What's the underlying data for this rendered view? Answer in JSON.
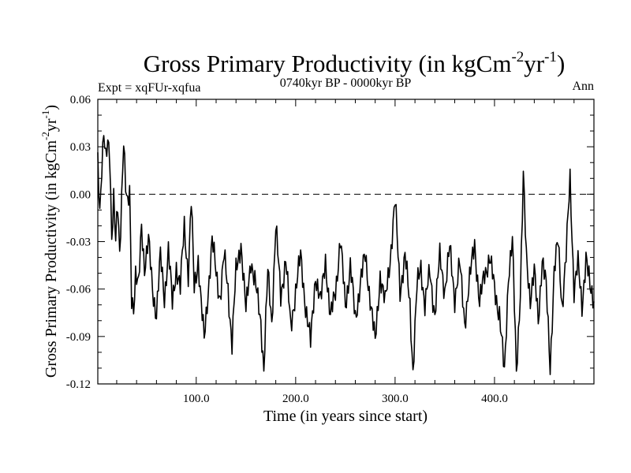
{
  "chart_data": {
    "type": "line",
    "title": "Gross Primary Productivity (in kgCm",
    "title_sup1": "-2",
    "title_mid": "yr",
    "title_sup2": "-1",
    "title_end": ")",
    "subtitle_left": "Expt = xqFUr-xqfua",
    "subtitle_center": "0740kyr BP - 0000kyr BP",
    "subtitle_right": "Ann",
    "xlabel": "Time (in years since start)",
    "ylabel_main": "Gross Primary Productivity (in kgCm",
    "ylabel_sup1": "-2",
    "ylabel_mid": "yr",
    "ylabel_sup2": "-1",
    "ylabel_end": ")",
    "xlim": [
      1,
      500
    ],
    "ylim": [
      -0.12,
      0.06
    ],
    "x_ticks": [
      100,
      200,
      300,
      400
    ],
    "x_tick_labels": [
      "100.0",
      "200.0",
      "300.0",
      "400.0"
    ],
    "y_ticks": [
      -0.12,
      -0.09,
      -0.06,
      -0.03,
      0.0,
      0.03,
      0.06
    ],
    "y_tick_labels": [
      "-0.12",
      "-0.09",
      "-0.06",
      "-0.03",
      "0.00",
      "0.03",
      "0.06"
    ],
    "reference_line": 0.0,
    "grid": false,
    "anchors": [
      [
        1,
        0.02
      ],
      [
        3,
        -0.01
      ],
      [
        5,
        0.02
      ],
      [
        7,
        0.04
      ],
      [
        9,
        0.02
      ],
      [
        11,
        0.03
      ],
      [
        13,
        0.025
      ],
      [
        15,
        -0.025
      ],
      [
        17,
        0.0
      ],
      [
        19,
        -0.03
      ],
      [
        21,
        -0.01
      ],
      [
        23,
        -0.04
      ],
      [
        25,
        0.0
      ],
      [
        27,
        0.038
      ],
      [
        29,
        0.005
      ],
      [
        31,
        -0.01
      ],
      [
        33,
        0.0
      ],
      [
        35,
        -0.065
      ],
      [
        37,
        -0.07
      ],
      [
        39,
        -0.05
      ],
      [
        42,
        -0.06
      ],
      [
        45,
        -0.02
      ],
      [
        48,
        -0.045
      ],
      [
        52,
        -0.03
      ],
      [
        56,
        -0.06
      ],
      [
        60,
        -0.075
      ],
      [
        64,
        -0.04
      ],
      [
        68,
        -0.065
      ],
      [
        72,
        -0.035
      ],
      [
        76,
        -0.07
      ],
      [
        80,
        -0.045
      ],
      [
        84,
        -0.06
      ],
      [
        88,
        -0.02
      ],
      [
        92,
        -0.05
      ],
      [
        95,
        -0.005
      ],
      [
        98,
        -0.06
      ],
      [
        102,
        -0.04
      ],
      [
        105,
        -0.07
      ],
      [
        108,
        -0.093
      ],
      [
        112,
        -0.06
      ],
      [
        116,
        -0.03
      ],
      [
        120,
        -0.05
      ],
      [
        124,
        -0.065
      ],
      [
        128,
        -0.04
      ],
      [
        132,
        -0.06
      ],
      [
        136,
        -0.094
      ],
      [
        140,
        -0.05
      ],
      [
        145,
        -0.03
      ],
      [
        150,
        -0.075
      ],
      [
        155,
        -0.04
      ],
      [
        160,
        -0.06
      ],
      [
        165,
        -0.08
      ],
      [
        168,
        -0.11
      ],
      [
        172,
        -0.05
      ],
      [
        176,
        -0.08
      ],
      [
        180,
        -0.02
      ],
      [
        185,
        -0.065
      ],
      [
        190,
        -0.04
      ],
      [
        195,
        -0.085
      ],
      [
        200,
        -0.06
      ],
      [
        205,
        -0.04
      ],
      [
        210,
        -0.07
      ],
      [
        215,
        -0.095
      ],
      [
        220,
        -0.05
      ],
      [
        225,
        -0.07
      ],
      [
        230,
        -0.04
      ],
      [
        235,
        -0.08
      ],
      [
        240,
        -0.06
      ],
      [
        245,
        -0.03
      ],
      [
        250,
        -0.07
      ],
      [
        255,
        -0.045
      ],
      [
        260,
        -0.08
      ],
      [
        265,
        -0.055
      ],
      [
        270,
        -0.04
      ],
      [
        275,
        -0.065
      ],
      [
        280,
        -0.095
      ],
      [
        285,
        -0.05
      ],
      [
        290,
        -0.07
      ],
      [
        295,
        -0.04
      ],
      [
        300,
        -0.005
      ],
      [
        305,
        -0.06
      ],
      [
        310,
        -0.04
      ],
      [
        315,
        -0.07
      ],
      [
        318,
        -0.111
      ],
      [
        322,
        -0.06
      ],
      [
        326,
        -0.045
      ],
      [
        330,
        -0.07
      ],
      [
        335,
        -0.05
      ],
      [
        340,
        -0.075
      ],
      [
        345,
        -0.04
      ],
      [
        350,
        -0.06
      ],
      [
        355,
        -0.035
      ],
      [
        360,
        -0.065
      ],
      [
        365,
        -0.045
      ],
      [
        370,
        -0.08
      ],
      [
        375,
        -0.055
      ],
      [
        380,
        -0.03
      ],
      [
        385,
        -0.07
      ],
      [
        390,
        -0.05
      ],
      [
        395,
        -0.04
      ],
      [
        400,
        -0.06
      ],
      [
        405,
        -0.075
      ],
      [
        410,
        -0.115
      ],
      [
        414,
        -0.05
      ],
      [
        418,
        -0.03
      ],
      [
        422,
        -0.113
      ],
      [
        426,
        -0.06
      ],
      [
        429,
        0.01
      ],
      [
        432,
        -0.04
      ],
      [
        436,
        -0.065
      ],
      [
        440,
        -0.05
      ],
      [
        444,
        -0.08
      ],
      [
        448,
        -0.04
      ],
      [
        452,
        -0.06
      ],
      [
        456,
        -0.108
      ],
      [
        460,
        -0.05
      ],
      [
        464,
        -0.03
      ],
      [
        468,
        -0.07
      ],
      [
        472,
        -0.04
      ],
      [
        476,
        0.01
      ],
      [
        480,
        -0.06
      ],
      [
        484,
        -0.045
      ],
      [
        488,
        -0.07
      ],
      [
        492,
        -0.04
      ],
      [
        496,
        -0.06
      ],
      [
        500,
        -0.065
      ]
    ]
  }
}
